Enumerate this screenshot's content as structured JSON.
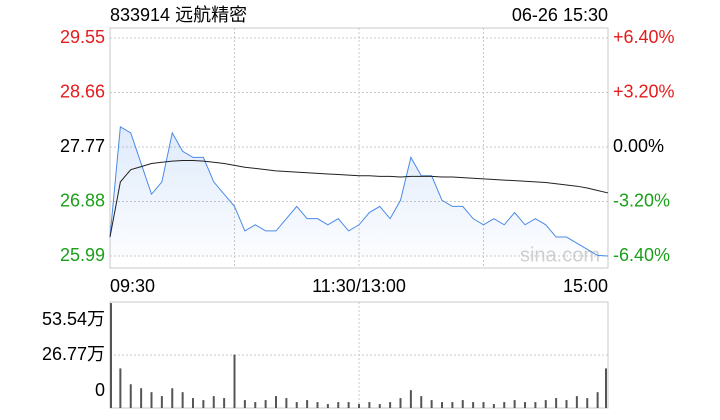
{
  "chart_data": [
    {
      "type": "line",
      "title": "833914 远航精密",
      "date": "06-26 15:30",
      "watermark": "sina.com",
      "x": [
        0,
        5,
        10,
        15,
        20,
        25,
        30,
        35,
        40,
        45,
        50,
        55,
        60,
        65,
        70,
        75,
        80,
        85,
        90,
        95,
        100,
        105,
        110,
        115,
        120,
        125,
        130,
        135,
        140,
        145,
        150,
        155,
        160,
        165,
        170,
        175,
        180,
        185,
        190,
        195,
        200,
        205,
        210,
        215,
        220,
        225,
        230,
        235,
        240
      ],
      "xlim": [
        0,
        240
      ],
      "xticks": [
        {
          "value": 0,
          "label": "09:30"
        },
        {
          "value": 120,
          "label": "11:30/13:00"
        },
        {
          "value": 240,
          "label": "15:00"
        }
      ],
      "ylim": [
        25.99,
        29.55
      ],
      "yticks": [
        25.99,
        26.88,
        27.77,
        28.66,
        29.55
      ],
      "y2lim": [
        -6.4,
        6.4
      ],
      "y2ticks": [
        {
          "value": -6.4,
          "label": "-6.40%"
        },
        {
          "value": -3.2,
          "label": "-3.20%"
        },
        {
          "value": 0,
          "label": "0.00%"
        },
        {
          "value": 3.2,
          "label": "+3.20%"
        },
        {
          "value": 6.4,
          "label": "+6.40%"
        }
      ],
      "up_color": "#e41c1c",
      "down_color": "#1aa01a",
      "flat_color": "#000000",
      "series": [
        {
          "color": "#4a8ae8",
          "values": [
            26.3,
            28.1,
            28.0,
            27.5,
            27.0,
            27.2,
            28.0,
            27.7,
            27.6,
            27.6,
            27.2,
            27.0,
            26.8,
            26.4,
            26.5,
            26.4,
            26.4,
            26.6,
            26.8,
            26.6,
            26.6,
            26.5,
            26.6,
            26.4,
            26.5,
            26.7,
            26.8,
            26.6,
            26.9,
            27.6,
            27.3,
            27.3,
            26.9,
            26.8,
            26.8,
            26.6,
            26.5,
            26.6,
            26.5,
            26.7,
            26.5,
            26.6,
            26.5,
            26.3,
            26.3,
            26.2,
            26.1,
            26.0,
            25.99
          ]
        },
        {
          "color": "#222222",
          "values": [
            26.3,
            27.2,
            27.4,
            27.45,
            27.5,
            27.52,
            27.54,
            27.55,
            27.55,
            27.54,
            27.52,
            27.5,
            27.47,
            27.44,
            27.42,
            27.4,
            27.38,
            27.37,
            27.36,
            27.35,
            27.34,
            27.33,
            27.32,
            27.31,
            27.3,
            27.3,
            27.29,
            27.29,
            27.28,
            27.29,
            27.29,
            27.29,
            27.28,
            27.28,
            27.27,
            27.26,
            27.25,
            27.24,
            27.23,
            27.22,
            27.21,
            27.2,
            27.19,
            27.17,
            27.15,
            27.13,
            27.1,
            27.06,
            27.02
          ]
        }
      ]
    },
    {
      "type": "bar",
      "x": [
        0,
        5,
        10,
        15,
        20,
        25,
        30,
        35,
        40,
        45,
        50,
        55,
        60,
        65,
        70,
        75,
        80,
        85,
        90,
        95,
        100,
        105,
        110,
        115,
        120,
        125,
        130,
        135,
        140,
        145,
        150,
        155,
        160,
        165,
        170,
        175,
        180,
        185,
        190,
        195,
        200,
        205,
        210,
        215,
        220,
        225,
        230,
        235,
        240
      ],
      "xlim": [
        0,
        240
      ],
      "values": [
        53,
        20,
        12,
        10,
        8,
        6,
        10,
        8,
        5,
        4,
        6,
        5,
        27,
        4,
        3,
        4,
        6,
        5,
        3,
        4,
        3,
        2,
        3,
        3,
        2,
        3,
        2,
        3,
        5,
        9,
        6,
        4,
        3,
        3,
        4,
        3,
        3,
        2,
        3,
        4,
        3,
        3,
        4,
        5,
        4,
        6,
        5,
        8,
        20
      ],
      "color": "#555555",
      "ylim": [
        0,
        53.54
      ],
      "yticks": [
        0,
        {
          "value": 26.77,
          "label": "26.77万"
        },
        {
          "value": 53.54,
          "label": "53.54万"
        }
      ]
    }
  ]
}
